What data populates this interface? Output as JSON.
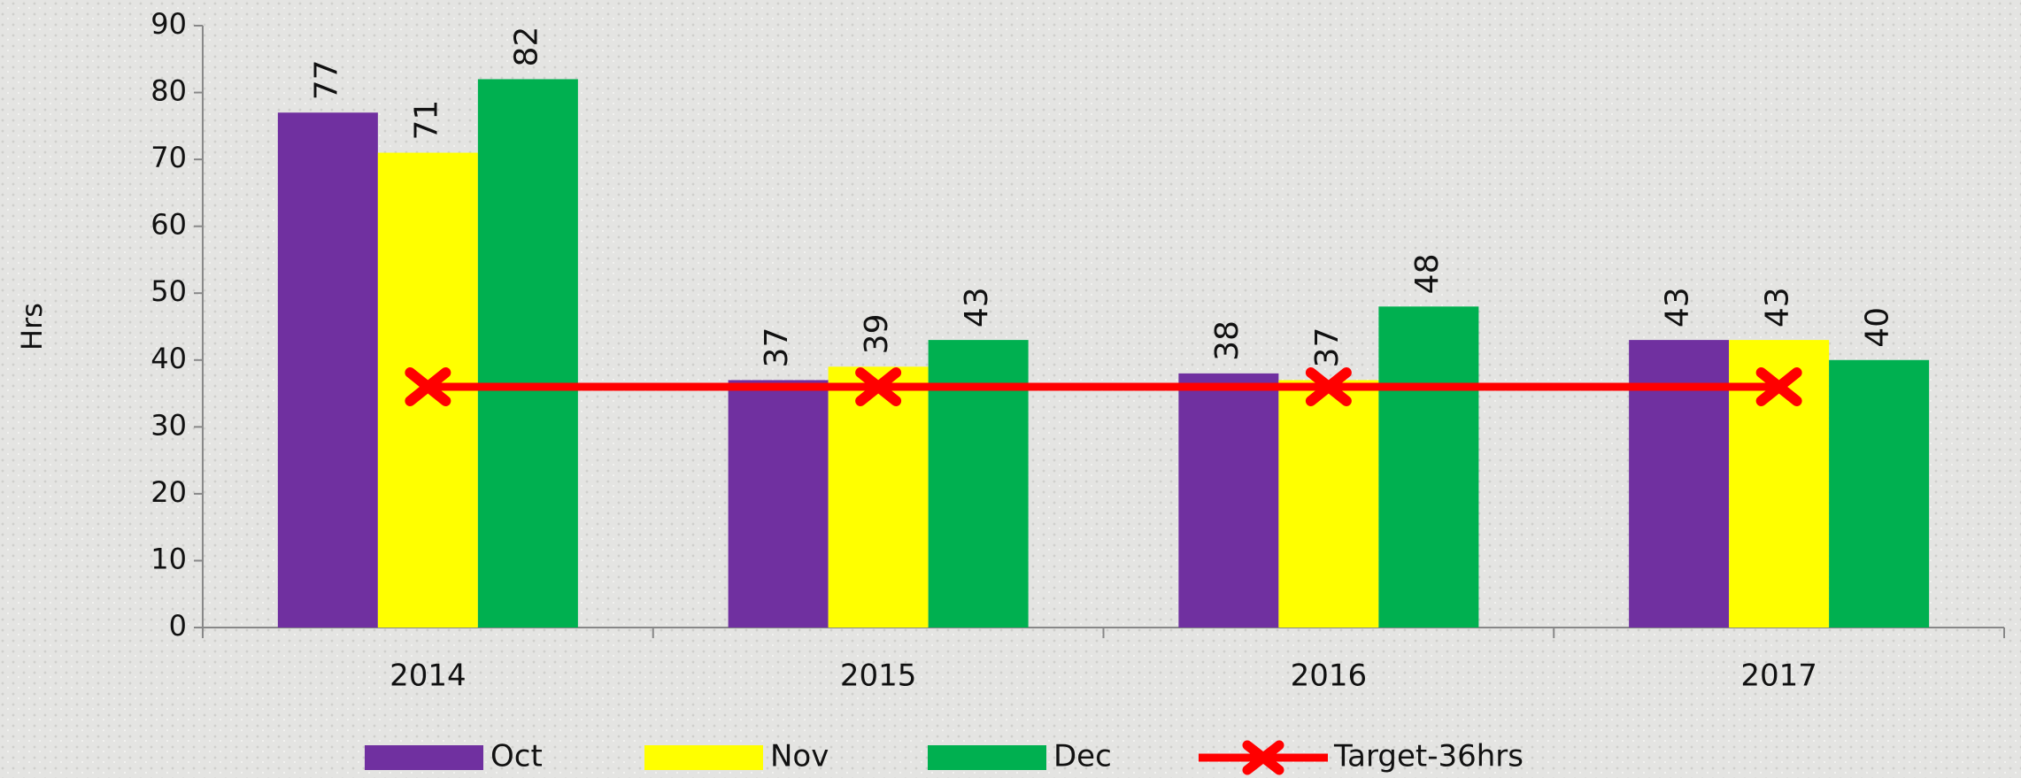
{
  "chart_data": {
    "type": "bar",
    "ylabel": "Hrs",
    "categories": [
      "2014",
      "2015",
      "2016",
      "2017"
    ],
    "series": [
      {
        "name": "Oct",
        "color": "#7030a0",
        "values": [
          77,
          37,
          38,
          43
        ]
      },
      {
        "name": "Nov",
        "color": "#ffff00",
        "values": [
          71,
          39,
          37,
          43
        ]
      },
      {
        "name": "Dec",
        "color": "#00b050",
        "values": [
          82,
          43,
          48,
          40
        ]
      },
      {
        "name": "Target-36hrs",
        "type": "line",
        "color": "#ff0000",
        "values": [
          36,
          36,
          36,
          36
        ]
      }
    ],
    "ylim": [
      0,
      90
    ],
    "yticks": [
      0,
      10,
      20,
      30,
      40,
      50,
      60,
      70,
      80,
      90
    ],
    "grid": false,
    "legend": "bottom",
    "value_labels_shown": true
  }
}
